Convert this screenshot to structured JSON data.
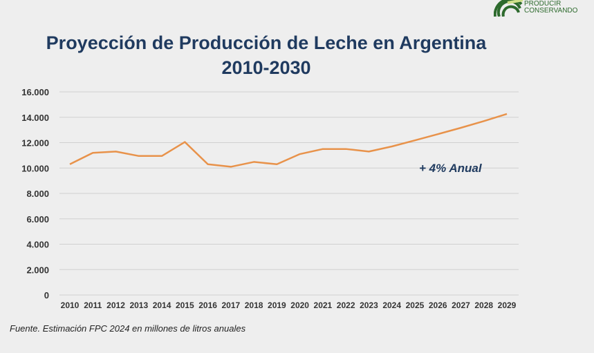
{
  "logo": {
    "line1": "PRODUCIR",
    "line2": "CONSERVANDO",
    "color": "#2d6a2d"
  },
  "source": "Fuente.  Estimación FPC 2024 en millones de litros anuales",
  "chart_data": {
    "type": "line",
    "title": "Proyección de Producción de Leche en Argentina 2010-2030",
    "xlabel": "",
    "ylabel": "",
    "x": [
      "2010",
      "2011",
      "2012",
      "2013",
      "2014",
      "2015",
      "2016",
      "2017",
      "2018",
      "2019",
      "2020",
      "2021",
      "2022",
      "2023",
      "2024",
      "2025",
      "2026",
      "2027",
      "2028",
      "2029"
    ],
    "series": [
      {
        "values": [
          10300,
          11200,
          11300,
          10950,
          10950,
          12050,
          10300,
          10100,
          10480,
          10300,
          11100,
          11500,
          11500,
          11300,
          11700,
          12180,
          12670,
          13170,
          13700,
          14260
        ],
        "color": "#e8924a"
      }
    ],
    "ylim": [
      0,
      16000
    ],
    "yticks": [
      "0",
      "2.000",
      "4.000",
      "6.000",
      "8.000",
      "10.000",
      "12.000",
      "14.000",
      "16.000"
    ],
    "grid": true,
    "annotation": "+ 4% Anual"
  }
}
